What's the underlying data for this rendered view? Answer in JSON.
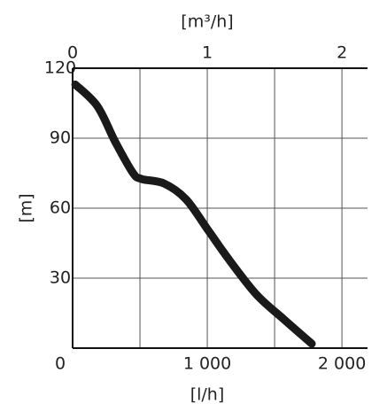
{
  "chart_data": {
    "type": "line",
    "x_label": "[l/h]",
    "x2_label": "[m³/h]",
    "y_label": "[m]",
    "xlim": [
      0,
      2190
    ],
    "xticks": [
      0,
      {
        "value": 1000,
        "label": "1 000"
      },
      {
        "value": 2000,
        "label": "2 000"
      }
    ],
    "xgrid": [
      500,
      1000,
      1500,
      2000
    ],
    "x2lim": [
      0,
      2.19
    ],
    "x2ticks": [
      0,
      1,
      2
    ],
    "ylim": [
      0,
      120
    ],
    "yticks": [
      30,
      60,
      90,
      120
    ],
    "grid": true,
    "series": [
      {
        "color": "#1a1a1a",
        "x": [
          20,
          184,
          316,
          447,
          513,
          678,
          842,
          1007,
          1171,
          1368,
          1566,
          1776
        ],
        "values": [
          113,
          103.7,
          88.5,
          75.2,
          72.5,
          70.6,
          63.8,
          50.5,
          37.2,
          22.8,
          12.5,
          1.9
        ]
      }
    ]
  }
}
